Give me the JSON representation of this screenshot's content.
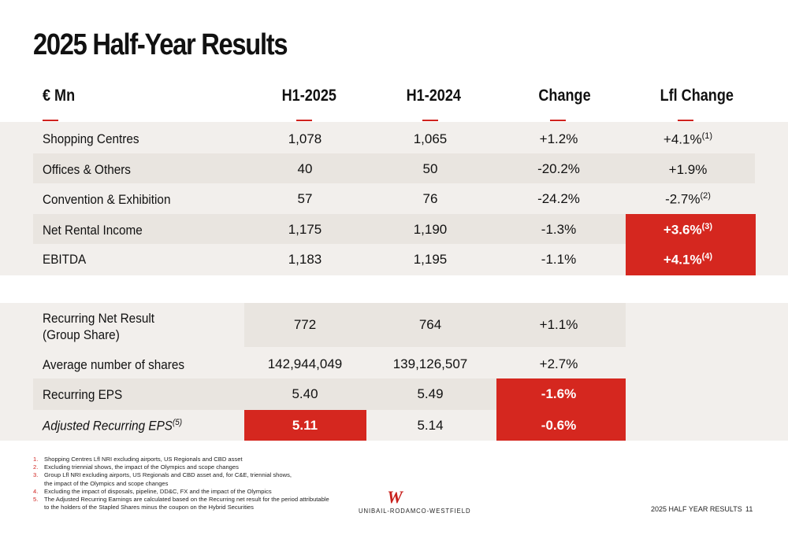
{
  "title": "2025 Half-Year Results",
  "headers": {
    "unit": "€ Mn",
    "h1_2025": "H1-2025",
    "h1_2024": "H1-2024",
    "change": "Change",
    "lfl_change": "Lfl Change"
  },
  "rows": [
    {
      "label": "Shopping Centres",
      "h1_2025": "1,078",
      "h1_2024": "1,065",
      "change": "+1.2%",
      "lfl": "+4.1%",
      "lfl_note": "(1)"
    },
    {
      "label": "Offices & Others",
      "h1_2025": "40",
      "h1_2024": "50",
      "change": "-20.2%",
      "lfl": "+1.9%",
      "lfl_note": ""
    },
    {
      "label": "Convention & Exhibition",
      "h1_2025": "57",
      "h1_2024": "76",
      "change": "-24.2%",
      "lfl": "-2.7%",
      "lfl_note": "(2)"
    },
    {
      "label": "Net Rental Income",
      "h1_2025": "1,175",
      "h1_2024": "1,190",
      "change": "-1.3%",
      "lfl": "+3.6%",
      "lfl_note": "(3)"
    },
    {
      "label": "EBITDA",
      "h1_2025": "1,183",
      "h1_2024": "1,195",
      "change": "-1.1%",
      "lfl": "+4.1%",
      "lfl_note": "(4)"
    }
  ],
  "rows2": [
    {
      "label": "Recurring Net Result",
      "label2": "(Group Share)",
      "h1_2025": "772",
      "h1_2024": "764",
      "change": "+1.1%"
    },
    {
      "label": "Average number of shares",
      "h1_2025": "142,944,049",
      "h1_2024": "139,126,507",
      "change": "+2.7%"
    },
    {
      "label": "Recurring EPS",
      "h1_2025": "5.40",
      "h1_2024": "5.49",
      "change": "-1.6%"
    },
    {
      "label": "Adjusted Recurring EPS",
      "label_note": "(5)",
      "h1_2025": "5.11",
      "h1_2024": "5.14",
      "change": "-0.6%"
    }
  ],
  "footnotes": [
    {
      "n": "1.",
      "text": "Shopping Centres Lfl NRI excluding airports, US Regionals and CBD asset"
    },
    {
      "n": "2.",
      "text": "Excluding triennial shows, the impact of the Olympics and scope changes"
    },
    {
      "n": "3.",
      "text": "Group Lfl NRI excluding airports, US Regionals and CBD asset and, for C&E, triennial shows,"
    },
    {
      "n": "",
      "text": "the impact of the Olympics and scope changes"
    },
    {
      "n": "4.",
      "text": "Excluding the impact of disposals, pipeline, DD&C, FX and the impact of the Olympics"
    },
    {
      "n": "5.",
      "text": "The Adjusted Recurring Earnings are calculated based on the Recurring net result for the period attributable"
    },
    {
      "n": "",
      "text": "to the holders of the Stapled Shares minus the coupon on the Hybrid Securities"
    }
  ],
  "logo": {
    "mark": "W",
    "text": "UNIBAIL-RODAMCO-WESTFIELD"
  },
  "footer": {
    "label": "2025 HALF YEAR RESULTS",
    "page": "11"
  },
  "colors": {
    "accent": "#d5271f",
    "band": "#f2efec",
    "shade": "#e9e5e0"
  }
}
